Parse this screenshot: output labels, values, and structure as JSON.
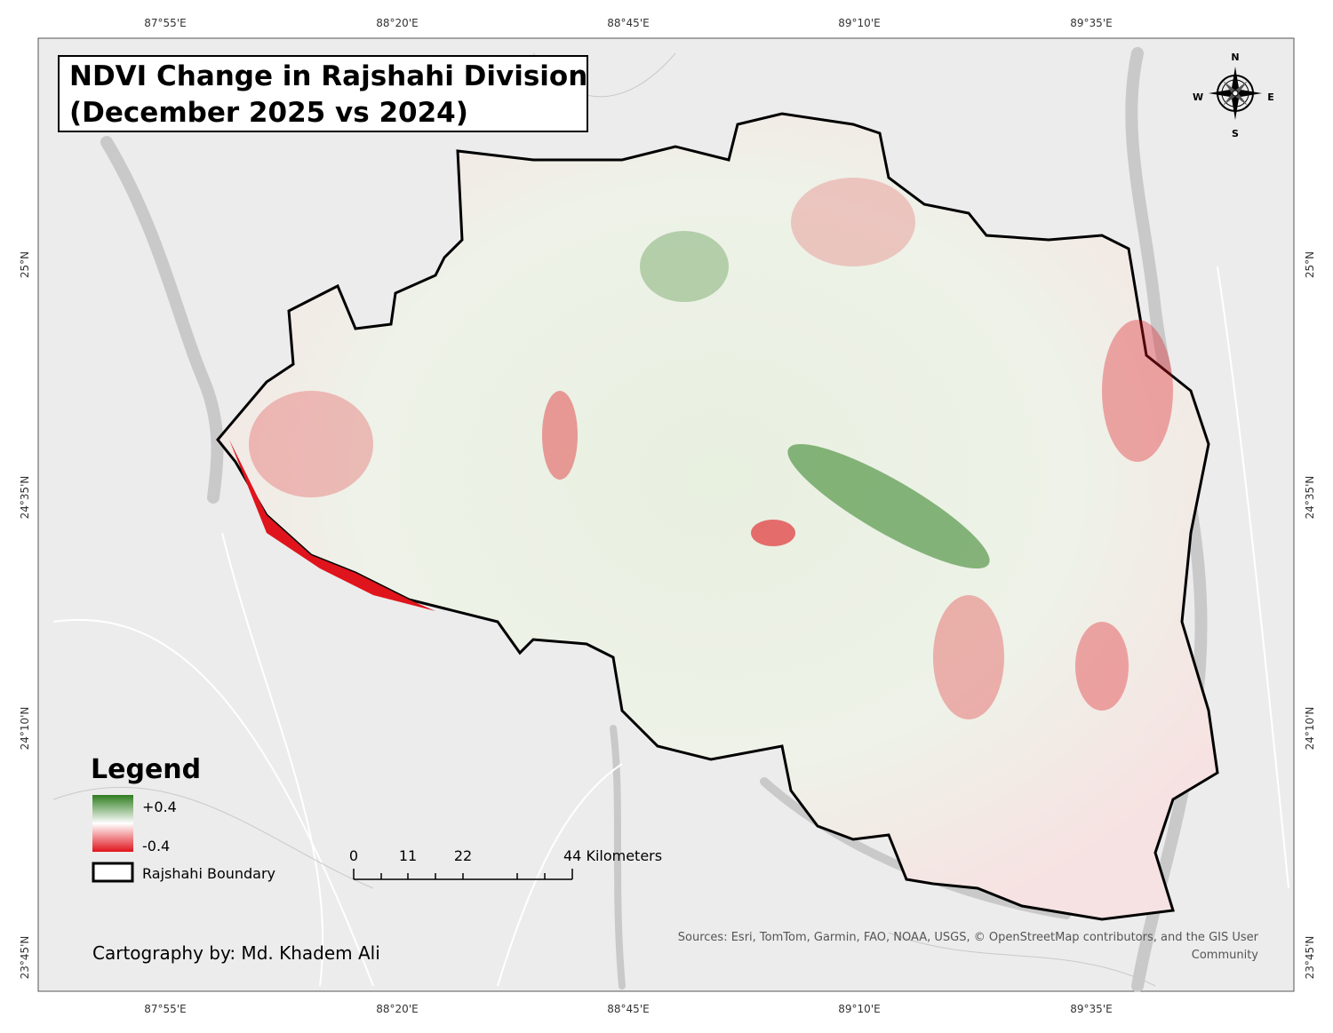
{
  "title": [
    "NDVI Change in Rajshahi Division",
    "(December 2025 vs 2024)"
  ],
  "graticule": {
    "longitudes": [
      "87°55'E",
      "88°20'E",
      "88°45'E",
      "89°10'E",
      "89°35'E"
    ],
    "latitudes": [
      "25°N",
      "24°35'N",
      "24°10'N",
      "23°45'N"
    ]
  },
  "compass": {
    "north": "N",
    "south": "S",
    "east": "E",
    "west": "W"
  },
  "legend": {
    "title": "Legend",
    "high": "+0.4",
    "low": "-0.4",
    "boundary": "Rajshahi Boundary"
  },
  "scalebar": {
    "labels": [
      "0",
      "11",
      "22",
      "44 Kilometers"
    ]
  },
  "credits": "Cartography by: Md. Khadem Ali",
  "sources": [
    "Sources: Esri, TomTom, Garmin, FAO, NOAA, USGS, © OpenStreetMap contributors, and the GIS User",
    "Community"
  ]
}
